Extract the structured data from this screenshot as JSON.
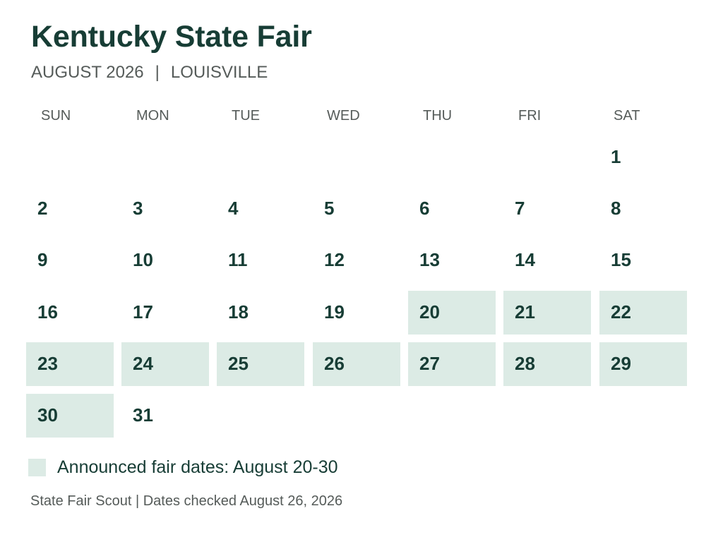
{
  "document": {
    "title": "Kentucky State Fair",
    "subtitle": {
      "date": "AUGUST 2026",
      "separator": "|",
      "location": "LOUISVILLE"
    }
  },
  "calendar": {
    "weekdays": [
      "SUN",
      "MON",
      "TUE",
      "WED",
      "THU",
      "FRI",
      "SAT"
    ],
    "days": [
      "1",
      "2",
      "3",
      "4",
      "5",
      "6",
      "7",
      "8",
      "9",
      "10",
      "11",
      "12",
      "13",
      "14",
      "15",
      "16",
      "17",
      "18",
      "19",
      "20",
      "21",
      "22",
      "23",
      "24",
      "25",
      "26",
      "27",
      "28",
      "29",
      "30",
      "31"
    ],
    "highlighted_days": [
      20,
      21,
      22,
      23,
      24,
      25,
      26,
      27,
      28,
      29,
      30
    ],
    "colors": {
      "highlight": "#dcebe5",
      "primary_text": "#173d35",
      "secondary_text": "#555b59"
    }
  },
  "legend": {
    "label": "Announced fair dates: August 20-30"
  },
  "footer": {
    "text": "State Fair Scout | Dates checked August 26, 2026"
  }
}
